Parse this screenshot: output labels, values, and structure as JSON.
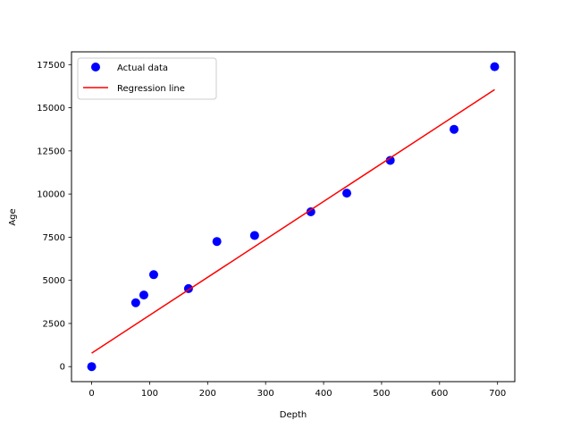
{
  "chart_data": {
    "type": "scatter",
    "title": "",
    "xlabel": "Depth",
    "ylabel": "Age",
    "xlim": [
      -34.75,
      729.75
    ],
    "ylim": [
      -870,
      18240
    ],
    "xticks": [
      0,
      100,
      200,
      300,
      400,
      500,
      600,
      700
    ],
    "yticks": [
      0,
      2500,
      5000,
      7500,
      10000,
      12500,
      15000,
      17500
    ],
    "grid": false,
    "legend_position": "top-left",
    "series": [
      {
        "name": "Actual data",
        "kind": "scatter",
        "color": "#0000ff",
        "x": [
          0,
          76,
          90,
          107,
          167,
          216,
          281,
          378,
          440,
          515,
          625,
          695
        ],
        "y": [
          0,
          3700,
          4150,
          5330,
          4520,
          7250,
          7600,
          8970,
          10050,
          11950,
          13750,
          17380
        ]
      },
      {
        "name": "Regression line",
        "kind": "line",
        "color": "#ff0000",
        "x": [
          0,
          695
        ],
        "y": [
          780,
          16050
        ]
      }
    ]
  }
}
